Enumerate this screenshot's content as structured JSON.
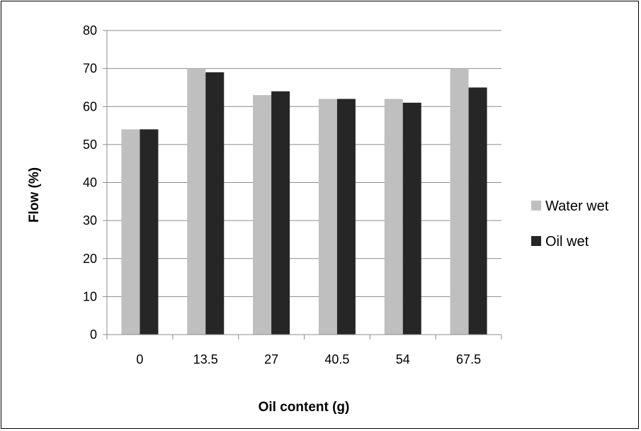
{
  "chart_data": {
    "type": "bar",
    "title": "",
    "xlabel": "Oil content (g)",
    "ylabel": "Flow (%)",
    "categories": [
      "0",
      "13.5",
      "27",
      "40.5",
      "54",
      "67.5"
    ],
    "series": [
      {
        "name": "Water wet",
        "color": "#bfbfbf",
        "values": [
          54,
          70,
          63,
          62,
          62,
          70
        ]
      },
      {
        "name": "Oil wet",
        "color": "#262626",
        "values": [
          54,
          69,
          64,
          62,
          61,
          65
        ]
      }
    ],
    "ylim": [
      0,
      80
    ],
    "yticks": [
      0,
      10,
      20,
      30,
      40,
      50,
      60,
      70,
      80
    ],
    "grid": true,
    "legend_position": "right"
  }
}
